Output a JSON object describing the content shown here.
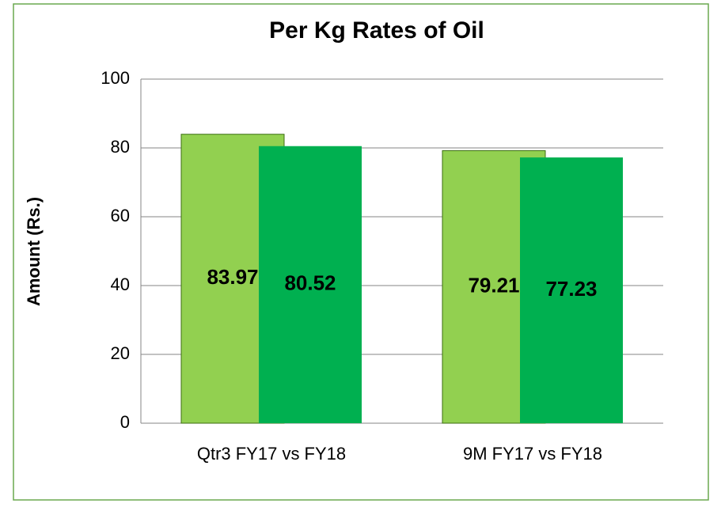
{
  "chart_data": {
    "type": "bar",
    "title": "Per Kg Rates of Oil",
    "ylabel": "Amount (Rs.)",
    "categories": [
      "Qtr3 FY17 vs FY18",
      "9M FY17 vs FY18"
    ],
    "series": [
      {
        "color": "#92d050",
        "values": [
          83.97,
          79.21
        ]
      },
      {
        "color": "#00b050",
        "values": [
          80.52,
          77.23
        ]
      }
    ],
    "ylim": [
      0,
      100
    ],
    "yticks": [
      0,
      20,
      40,
      60,
      80,
      100
    ],
    "grid": true
  }
}
